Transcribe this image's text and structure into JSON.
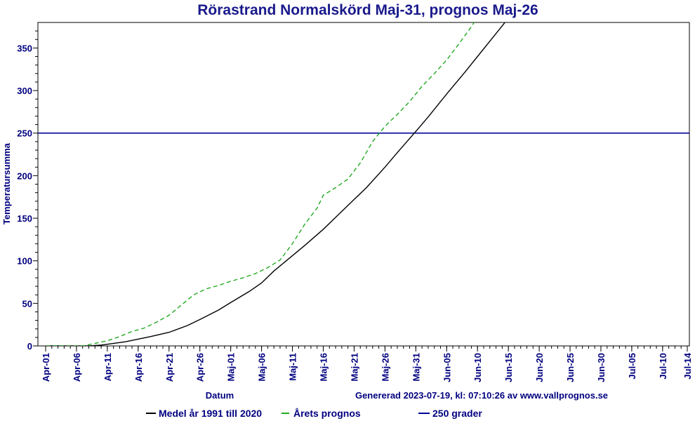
{
  "chart_data": {
    "type": "line",
    "title": "Rörastrand Normalskörd Maj-31, prognos Maj-26",
    "xlabel": "Datum",
    "ylabel": "Temperatursumma",
    "footer": "Genererad 2023-07-19, kl: 07:10:26 av www.vallprognos.se",
    "colors": {
      "title": "#1a1a8c",
      "axis": "#000080",
      "normal": "#000000",
      "forecast": "#22aa22",
      "threshold": "#000099"
    },
    "x_ticks": [
      "Apr-01",
      "Apr-06",
      "Apr-11",
      "Apr-16",
      "Apr-21",
      "Apr-26",
      "Maj-01",
      "Maj-06",
      "Maj-11",
      "Maj-16",
      "Maj-21",
      "Maj-26",
      "Maj-31",
      "Jun-05",
      "Jun-10",
      "Jun-15",
      "Jun-20",
      "Jun-25",
      "Jun-30",
      "Jul-05",
      "Jul-10",
      "Jul-14"
    ],
    "y_ticks": [
      0,
      50,
      100,
      150,
      200,
      250,
      300,
      350
    ],
    "ylim": [
      0,
      380
    ],
    "legend": [
      "Medel år 1991 till 2020",
      "Årets prognos",
      "250 grader"
    ],
    "legend_placement": "bottom",
    "grid": false,
    "series": [
      {
        "name": "Medel år 1991 till 2020",
        "style": "solid",
        "points": [
          [
            "Apr-01",
            0
          ],
          [
            "Apr-08",
            0
          ],
          [
            "Apr-10",
            1
          ],
          [
            "Apr-12",
            3
          ],
          [
            "Apr-14",
            5
          ],
          [
            "Apr-16",
            8
          ],
          [
            "Apr-18",
            11
          ],
          [
            "Apr-21",
            16
          ],
          [
            "Apr-24",
            24
          ],
          [
            "Apr-26",
            31
          ],
          [
            "Apr-29",
            42
          ],
          [
            "Maj-01",
            51
          ],
          [
            "Maj-04",
            64
          ],
          [
            "Maj-06",
            74
          ],
          [
            "Maj-08",
            88
          ],
          [
            "Maj-11",
            106
          ],
          [
            "Maj-13",
            118
          ],
          [
            "Maj-16",
            137
          ],
          [
            "Maj-18",
            151
          ],
          [
            "Maj-21",
            172
          ],
          [
            "Maj-23",
            186
          ],
          [
            "Maj-26",
            210
          ],
          [
            "Maj-28",
            227
          ],
          [
            "Maj-31",
            252
          ],
          [
            "Jun-02",
            269
          ],
          [
            "Jun-05",
            296
          ],
          [
            "Jun-08",
            322
          ],
          [
            "Jun-10",
            340
          ],
          [
            "Jun-12",
            358
          ],
          [
            "Jun-14",
            376
          ],
          [
            "Jun-15",
            385
          ]
        ]
      },
      {
        "name": "Årets prognos",
        "style": "dashed",
        "points": [
          [
            "Apr-01",
            0
          ],
          [
            "Apr-07",
            0
          ],
          [
            "Apr-09",
            3
          ],
          [
            "Apr-11",
            6
          ],
          [
            "Apr-13",
            11
          ],
          [
            "Apr-15",
            17
          ],
          [
            "Apr-17",
            21
          ],
          [
            "Apr-19",
            28
          ],
          [
            "Apr-21",
            36
          ],
          [
            "Apr-23",
            48
          ],
          [
            "Apr-25",
            60
          ],
          [
            "Apr-27",
            67
          ],
          [
            "Apr-29",
            71
          ],
          [
            "Maj-01",
            76
          ],
          [
            "Maj-03",
            80
          ],
          [
            "Maj-05",
            85
          ],
          [
            "Maj-07",
            92
          ],
          [
            "Maj-09",
            101
          ],
          [
            "Maj-11",
            120
          ],
          [
            "Maj-13",
            143
          ],
          [
            "Maj-15",
            162
          ],
          [
            "Maj-16",
            177
          ],
          [
            "Maj-18",
            186
          ],
          [
            "Maj-20",
            196
          ],
          [
            "Maj-22",
            215
          ],
          [
            "Maj-24",
            240
          ],
          [
            "Maj-26",
            258
          ],
          [
            "Maj-28",
            272
          ],
          [
            "Maj-30",
            287
          ],
          [
            "Jun-01",
            305
          ],
          [
            "Jun-03",
            320
          ],
          [
            "Jun-05",
            336
          ],
          [
            "Jun-07",
            355
          ],
          [
            "Jun-09",
            375
          ],
          [
            "Jun-10",
            386
          ]
        ]
      },
      {
        "name": "250 grader",
        "style": "solid",
        "points": [
          [
            "Apr-01",
            250
          ],
          [
            "Jul-14",
            250
          ]
        ]
      }
    ]
  }
}
